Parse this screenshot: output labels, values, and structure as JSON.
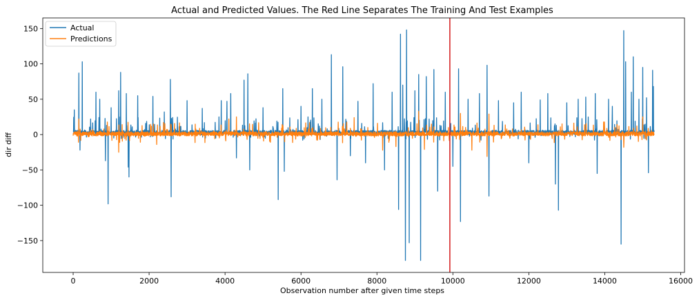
{
  "chart_data": {
    "type": "line",
    "title": "Actual and Predicted Values. The Red Line Separates The Training And Test Examples",
    "xlabel": "Observation number after given time steps",
    "ylabel": "dir diff",
    "xlim": [
      -800,
      16100
    ],
    "ylim": [
      -195,
      165
    ],
    "x_ticks": [
      0,
      2000,
      4000,
      6000,
      8000,
      10000,
      12000,
      14000,
      16000
    ],
    "x_tick_labels": [
      "0",
      "2000",
      "4000",
      "6000",
      "8000",
      "10000",
      "12000",
      "14000",
      "16000"
    ],
    "y_ticks": [
      -150,
      -100,
      -50,
      0,
      50,
      100,
      150
    ],
    "y_tick_labels": [
      "−150",
      "−100",
      "−50",
      "0",
      "50",
      "100",
      "150"
    ],
    "grid": false,
    "legend_position": "top-left",
    "n_observations": 15300,
    "split_index": 9920,
    "split_line_color": "#d62728",
    "series": [
      {
        "name": "Actual",
        "color": "#1f77b4",
        "baseline_noise_range": [
          -8,
          25
        ],
        "spikes": [
          {
            "x": 30,
            "y": 35
          },
          {
            "x": 150,
            "y": 87
          },
          {
            "x": 180,
            "y": -22
          },
          {
            "x": 240,
            "y": 103
          },
          {
            "x": 600,
            "y": 60
          },
          {
            "x": 700,
            "y": 50
          },
          {
            "x": 850,
            "y": -37
          },
          {
            "x": 920,
            "y": -98
          },
          {
            "x": 1000,
            "y": 38
          },
          {
            "x": 1200,
            "y": 62
          },
          {
            "x": 1250,
            "y": 88
          },
          {
            "x": 1400,
            "y": 58
          },
          {
            "x": 1450,
            "y": -46
          },
          {
            "x": 1470,
            "y": -60
          },
          {
            "x": 1700,
            "y": 55
          },
          {
            "x": 2100,
            "y": 54
          },
          {
            "x": 2400,
            "y": 32
          },
          {
            "x": 2560,
            "y": 78
          },
          {
            "x": 2580,
            "y": -88
          },
          {
            "x": 3000,
            "y": 48
          },
          {
            "x": 3400,
            "y": 37
          },
          {
            "x": 3900,
            "y": 48
          },
          {
            "x": 4050,
            "y": 47
          },
          {
            "x": 4150,
            "y": 58
          },
          {
            "x": 4300,
            "y": -33
          },
          {
            "x": 4500,
            "y": 77
          },
          {
            "x": 4600,
            "y": 86
          },
          {
            "x": 4650,
            "y": -50
          },
          {
            "x": 5000,
            "y": 38
          },
          {
            "x": 5400,
            "y": -92
          },
          {
            "x": 5520,
            "y": 65
          },
          {
            "x": 5560,
            "y": -52
          },
          {
            "x": 6000,
            "y": 40
          },
          {
            "x": 6300,
            "y": 65
          },
          {
            "x": 6550,
            "y": 50
          },
          {
            "x": 6800,
            "y": 113
          },
          {
            "x": 6950,
            "y": -64
          },
          {
            "x": 7100,
            "y": 96
          },
          {
            "x": 7300,
            "y": -30
          },
          {
            "x": 7500,
            "y": 47
          },
          {
            "x": 7700,
            "y": -40
          },
          {
            "x": 7900,
            "y": 72
          },
          {
            "x": 8200,
            "y": -50
          },
          {
            "x": 8400,
            "y": 60
          },
          {
            "x": 8570,
            "y": -106
          },
          {
            "x": 8620,
            "y": 142
          },
          {
            "x": 8680,
            "y": 70
          },
          {
            "x": 8750,
            "y": -178
          },
          {
            "x": 8780,
            "y": 148
          },
          {
            "x": 8850,
            "y": -153
          },
          {
            "x": 9000,
            "y": 62
          },
          {
            "x": 9100,
            "y": 85
          },
          {
            "x": 9150,
            "y": -178
          },
          {
            "x": 9300,
            "y": 82
          },
          {
            "x": 9500,
            "y": 92
          },
          {
            "x": 9600,
            "y": -80
          },
          {
            "x": 9800,
            "y": 60
          },
          {
            "x": 10000,
            "y": -45
          },
          {
            "x": 10150,
            "y": 93
          },
          {
            "x": 10200,
            "y": -123
          },
          {
            "x": 10400,
            "y": 50
          },
          {
            "x": 10700,
            "y": 58
          },
          {
            "x": 10900,
            "y": 98
          },
          {
            "x": 10950,
            "y": -87
          },
          {
            "x": 11200,
            "y": 48
          },
          {
            "x": 11600,
            "y": 45
          },
          {
            "x": 11800,
            "y": 60
          },
          {
            "x": 12000,
            "y": -40
          },
          {
            "x": 12300,
            "y": 49
          },
          {
            "x": 12500,
            "y": 58
          },
          {
            "x": 12700,
            "y": -70
          },
          {
            "x": 12780,
            "y": -107
          },
          {
            "x": 13000,
            "y": 45
          },
          {
            "x": 13300,
            "y": 50
          },
          {
            "x": 13500,
            "y": 53
          },
          {
            "x": 13750,
            "y": 58
          },
          {
            "x": 13800,
            "y": -55
          },
          {
            "x": 14100,
            "y": 50
          },
          {
            "x": 14200,
            "y": 40
          },
          {
            "x": 14430,
            "y": -155
          },
          {
            "x": 14500,
            "y": 147
          },
          {
            "x": 14550,
            "y": 103
          },
          {
            "x": 14700,
            "y": 60
          },
          {
            "x": 14750,
            "y": 110
          },
          {
            "x": 14900,
            "y": 50
          },
          {
            "x": 15000,
            "y": 95
          },
          {
            "x": 15100,
            "y": 52
          },
          {
            "x": 15150,
            "y": -54
          },
          {
            "x": 15260,
            "y": 91
          },
          {
            "x": 15280,
            "y": 68
          }
        ]
      },
      {
        "name": "Predictions",
        "color": "#ff7f0e",
        "baseline_noise_range": [
          -12,
          18
        ],
        "spikes": [
          {
            "x": 150,
            "y": 22
          },
          {
            "x": 1200,
            "y": -25
          },
          {
            "x": 2200,
            "y": -14
          },
          {
            "x": 4100,
            "y": 22
          },
          {
            "x": 4300,
            "y": 25
          },
          {
            "x": 7400,
            "y": 24
          },
          {
            "x": 8150,
            "y": -22
          },
          {
            "x": 8500,
            "y": -17
          },
          {
            "x": 9100,
            "y": 33
          },
          {
            "x": 9250,
            "y": -21
          },
          {
            "x": 10200,
            "y": 30
          },
          {
            "x": 10500,
            "y": -22
          },
          {
            "x": 10950,
            "y": 29
          },
          {
            "x": 10900,
            "y": -31
          },
          {
            "x": 14500,
            "y": -18
          },
          {
            "x": 15000,
            "y": 25
          }
        ]
      }
    ]
  }
}
